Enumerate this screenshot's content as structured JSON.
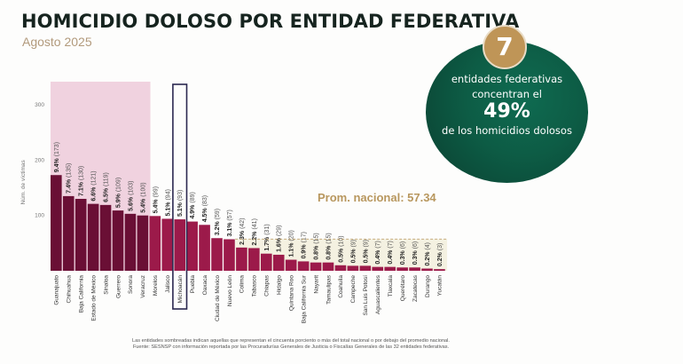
{
  "header": {
    "title": "HOMICIDIO DOLOSO POR ENTIDAD FEDERATIVA",
    "subtitle": "Agosto 2025"
  },
  "callout": {
    "badge_number": "7",
    "line1": "entidades federativas",
    "line2": "concentran el",
    "percent": "49%",
    "line4": "de los homicidios dolosos"
  },
  "average_label": "Prom. nacional: 57.34",
  "footnote": {
    "line1": "Las entidades sombreadas indican aquellas que representan el cincuenta porciento o más del total nacional o por debajo del promedio nacional.",
    "line2": "Fuente: SESNSP con información reportada por las Procuradurías Generales de Justicia o Fiscalías Generales de las 32 entidades federativas."
  },
  "colors": {
    "bar_dark": "#6a0f35",
    "bar_mid": "#9c1a4a",
    "shade_top": "#f0d2df",
    "shade_low": "#f4f1e1",
    "highlight_box": "#2b2850",
    "average_line": "#b8975e"
  },
  "chart_data": {
    "type": "bar",
    "title": "HOMICIDIO DOLOSO POR ENTIDAD FEDERATIVA",
    "subtitle": "Agosto 2025",
    "xlabel": "",
    "ylabel": "Núm. de víctimas",
    "ylim": [
      0,
      340
    ],
    "yticks": [
      100,
      200,
      300
    ],
    "grid": false,
    "reference_line": {
      "label": "Prom. nacional: 57.34",
      "value": 57.34,
      "style": "dashed"
    },
    "highlighted_category": "Michoacán",
    "shaded_top_count": 8,
    "shaded_below_average_from": "Colima",
    "categories": [
      "Guanajuato",
      "Chihuahua",
      "Baja California",
      "Estado de México",
      "Sinaloa",
      "Guerrero",
      "Sonora",
      "Veracruz",
      "Morelos",
      "Jalisco",
      "Michoacán",
      "Puebla",
      "Oaxaca",
      "Ciudad de México",
      "Nuevo León",
      "Colima",
      "Tabasco",
      "Chiapas",
      "Hidalgo",
      "Quintana Roo",
      "Baja California Sur",
      "Nayarit",
      "Tamaulipas",
      "Coahuila",
      "Campeche",
      "San Luis Potosí",
      "Aguascalientes",
      "Tlaxcala",
      "Querétaro",
      "Zacatecas",
      "Durango",
      "Yucatán"
    ],
    "values": [
      173,
      135,
      130,
      121,
      119,
      109,
      103,
      100,
      99,
      94,
      93,
      89,
      83,
      59,
      57,
      42,
      41,
      31,
      29,
      20,
      17,
      15,
      15,
      10,
      9,
      9,
      7,
      7,
      6,
      6,
      4,
      3
    ],
    "percent_labels": [
      "9.4%",
      "7.4%",
      "7.1%",
      "6.6%",
      "6.5%",
      "5.9%",
      "5.6%",
      "5.4%",
      "5.4%",
      "5.1%",
      "5.1%",
      "4.9%",
      "4.5%",
      "3.2%",
      "3.1%",
      "2.3%",
      "2.2%",
      "1.7%",
      "1.6%",
      "1.1%",
      "0.9%",
      "0.8%",
      "0.8%",
      "0.5%",
      "0.5%",
      "0.5%",
      "0.4%",
      "0.4%",
      "0.3%",
      "0.3%",
      "0.2%",
      "0.2%"
    ]
  }
}
